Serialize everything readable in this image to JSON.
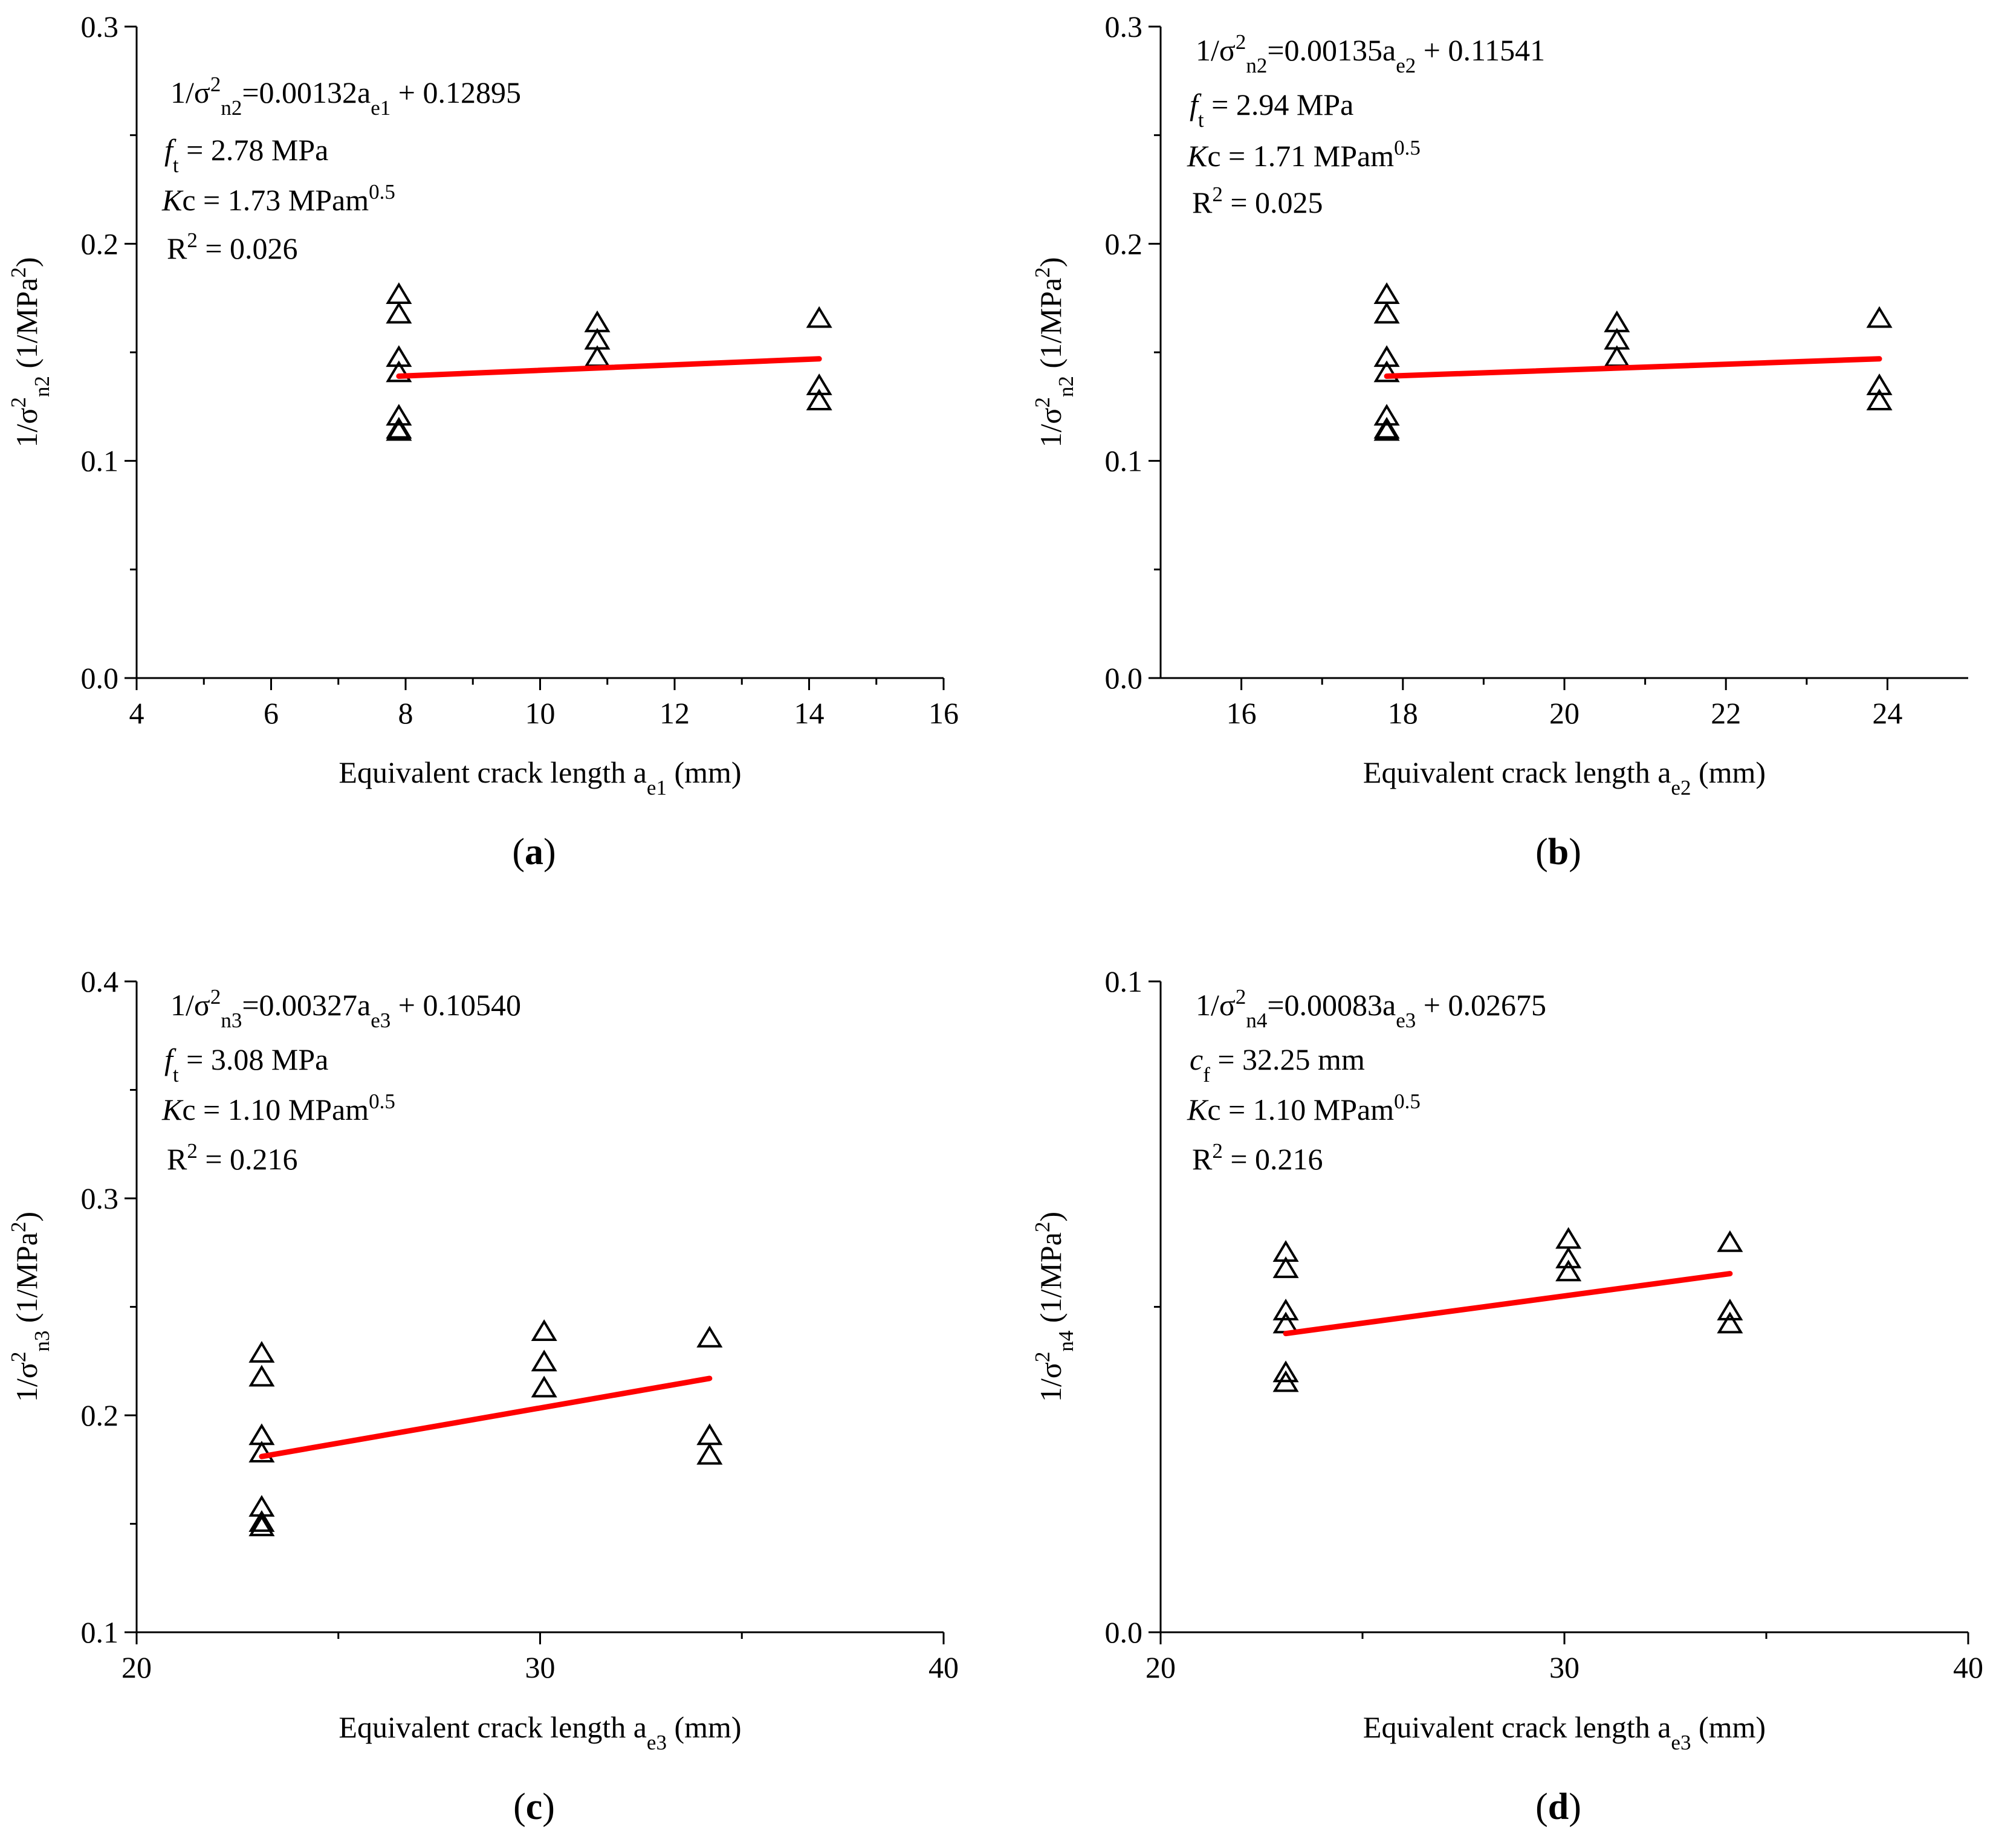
{
  "figure": {
    "panels": [
      {
        "id": "a",
        "label_letter": "a",
        "xlabel": {
          "main": "Equivalent crack length a",
          "sub": "e1",
          "unit": " (mm)"
        },
        "ylabel": {
          "pre": "1/σ",
          "sup": "2",
          "sub": "n2",
          "post": " (1/MPa",
          "sup2": "2",
          "close": ")"
        },
        "annotations": {
          "eq": {
            "pre": "1/σ",
            "sup": "2",
            "sub": "n2",
            "mid": "=0.00132a",
            "sub2": "e1",
            "post": " + 0.12895"
          },
          "param": {
            "sym": "f",
            "sub": "t",
            "rest": " = 2.78 MPa"
          },
          "kc": {
            "sym": "K",
            "rest": "c = 1.73 MPam",
            "sup": "0.5"
          },
          "r2": {
            "pre": "R",
            "sup": "2",
            "rest": " = 0.026"
          }
        }
      },
      {
        "id": "b",
        "label_letter": "b",
        "xlabel": {
          "main": "Equivalent crack length a",
          "sub": "e2",
          "unit": " (mm)"
        },
        "ylabel": {
          "pre": "1/σ",
          "sup": "2",
          "sub": "n2",
          "post": " (1/MPa",
          "sup2": "2",
          "close": ")"
        },
        "annotations": {
          "eq": {
            "pre": "1/σ",
            "sup": "2",
            "sub": "n2",
            "mid": "=0.00135a",
            "sub2": "e2",
            "post": " + 0.11541"
          },
          "param": {
            "sym": "f",
            "sub": "t",
            "rest": " =  2.94 MPa"
          },
          "kc": {
            "sym": "K",
            "rest": "c = 1.71 MPam",
            "sup": "0.5"
          },
          "r2": {
            "pre": "R",
            "sup": "2",
            "rest": " = 0.025"
          }
        }
      },
      {
        "id": "c",
        "label_letter": "c",
        "xlabel": {
          "main": "Equivalent crack length a",
          "sub": "e3",
          "unit": " (mm)"
        },
        "ylabel": {
          "pre": "1/σ",
          "sup": "2",
          "sub": "n3",
          "post": " (1/MPa",
          "sup2": "2",
          "close": ")"
        },
        "annotations": {
          "eq": {
            "pre": "1/σ",
            "sup": "2",
            "sub": "n3",
            "mid": "=0.00327a",
            "sub2": "e3",
            "post": " + 0.10540"
          },
          "param": {
            "sym": "f",
            "sub": "t",
            "rest": " = 3.08 MPa"
          },
          "kc": {
            "sym": "K",
            "rest": "c = 1.10 MPam",
            "sup": "0.5"
          },
          "r2": {
            "pre": "R",
            "sup": "2",
            "rest": " = 0.216"
          }
        }
      },
      {
        "id": "d",
        "label_letter": "d",
        "xlabel": {
          "main": "Equivalent crack length a",
          "sub": "e3",
          "unit": " (mm)"
        },
        "ylabel": {
          "pre": "1/σ",
          "sup": "2",
          "sub": "n4",
          "post": " (1/MPa",
          "sup2": "2",
          "close": ")"
        },
        "annotations": {
          "eq": {
            "pre": "1/σ",
            "sup": "2",
            "sub": "n4",
            "mid": "=0.00083a",
            "sub2": "e3",
            "post": " + 0.02675"
          },
          "param": {
            "sym": "c",
            "sub": "f",
            "rest": " = 32.25 mm"
          },
          "kc": {
            "sym": "K",
            "rest": "c = 1.10 MPam",
            "sup": "0.5"
          },
          "r2": {
            "pre": "R",
            "sup": "2",
            "rest": " = 0.216"
          }
        }
      }
    ]
  },
  "chart_data": [
    {
      "type": "scatter",
      "panel": "a",
      "xlim": [
        4,
        16
      ],
      "ylim": [
        0.0,
        0.3
      ],
      "xticks": [
        "4",
        "6",
        "8",
        "10",
        "12",
        "14",
        "16"
      ],
      "yticks": [
        "0.0",
        "0.1",
        "0.2",
        "0.3"
      ],
      "grid": false,
      "marker": "open-triangle",
      "line_color": "#ff0000",
      "points": {
        "x": [
          7.9,
          7.9,
          7.9,
          7.9,
          7.9,
          7.9,
          7.9,
          10.85,
          10.85,
          10.85,
          14.15,
          14.15,
          14.15
        ],
        "y": [
          0.177,
          0.168,
          0.148,
          0.141,
          0.121,
          0.115,
          0.114,
          0.164,
          0.156,
          0.148,
          0.166,
          0.135,
          0.128
        ]
      },
      "fit": {
        "x": [
          7.9,
          14.15
        ],
        "y": [
          0.139,
          0.147
        ]
      }
    },
    {
      "type": "scatter",
      "panel": "b",
      "xlim": [
        15,
        25
      ],
      "ylim": [
        0.0,
        0.3
      ],
      "xticks": [
        "16",
        "18",
        "20",
        "22",
        "24"
      ],
      "yticks": [
        "0.0",
        "0.1",
        "0.2",
        "0.3"
      ],
      "grid": false,
      "marker": "open-triangle",
      "line_color": "#ff0000",
      "points": {
        "x": [
          17.8,
          17.8,
          17.8,
          17.8,
          17.8,
          17.8,
          17.8,
          20.65,
          20.65,
          20.65,
          23.9,
          23.9,
          23.9
        ],
        "y": [
          0.177,
          0.168,
          0.148,
          0.141,
          0.121,
          0.115,
          0.114,
          0.164,
          0.156,
          0.148,
          0.166,
          0.135,
          0.128
        ]
      },
      "fit": {
        "x": [
          17.8,
          23.9
        ],
        "y": [
          0.139,
          0.147
        ]
      }
    },
    {
      "type": "scatter",
      "panel": "c",
      "xlim": [
        20,
        40
      ],
      "ylim": [
        0.1,
        0.4
      ],
      "xticks": [
        "20",
        "30",
        "40"
      ],
      "yticks": [
        "0.1",
        "0.2",
        "0.3",
        "0.4"
      ],
      "grid": false,
      "marker": "open-triangle",
      "line_color": "#ff0000",
      "points": {
        "x": [
          23.1,
          23.1,
          23.1,
          23.1,
          23.1,
          23.1,
          23.1,
          30.1,
          30.1,
          30.1,
          34.2,
          34.2,
          34.2
        ],
        "y": [
          0.229,
          0.218,
          0.191,
          0.183,
          0.158,
          0.151,
          0.149,
          0.239,
          0.225,
          0.213,
          0.236,
          0.191,
          0.182
        ]
      },
      "fit": {
        "x": [
          23.1,
          34.2
        ],
        "y": [
          0.181,
          0.217
        ]
      }
    },
    {
      "type": "scatter",
      "panel": "d",
      "xlim": [
        20,
        40
      ],
      "ylim": [
        0.0,
        0.1
      ],
      "xticks": [
        "20",
        "30",
        "40"
      ],
      "yticks": [
        "0.0",
        "0.1"
      ],
      "grid": false,
      "marker": "open-triangle",
      "line_color": "#ff0000",
      "points": {
        "x": [
          23.1,
          23.1,
          23.1,
          23.1,
          23.1,
          23.1,
          30.1,
          30.1,
          30.1,
          34.1,
          34.1,
          34.1
        ],
        "y": [
          0.0585,
          0.056,
          0.0495,
          0.0475,
          0.04,
          0.0385,
          0.0605,
          0.0575,
          0.0555,
          0.06,
          0.0495,
          0.0475
        ]
      },
      "fit": {
        "x": [
          23.1,
          34.1
        ],
        "y": [
          0.0459,
          0.0551
        ]
      }
    }
  ]
}
